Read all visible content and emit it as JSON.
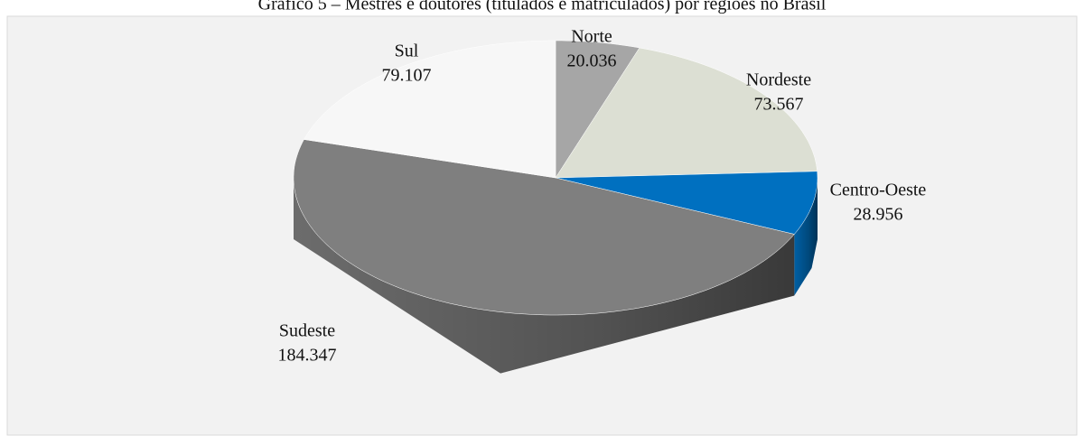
{
  "chart_data": {
    "type": "pie",
    "title": "Gráfico 5 – Mestres e doutores (titulados e matriculados) por regiões no Brasil",
    "categories": [
      "Norte",
      "Nordeste",
      "Centro-Oeste",
      "Sudeste",
      "Sul"
    ],
    "values": [
      20036,
      73567,
      28956,
      184347,
      79107
    ],
    "value_labels": [
      "20.036",
      "73.567",
      "28.956",
      "184.347",
      "79.107"
    ],
    "colors": [
      "#a6a6a6",
      "#dcdfd3",
      "#0070c0",
      "#7f7f7f",
      "#f7f7f7"
    ]
  }
}
